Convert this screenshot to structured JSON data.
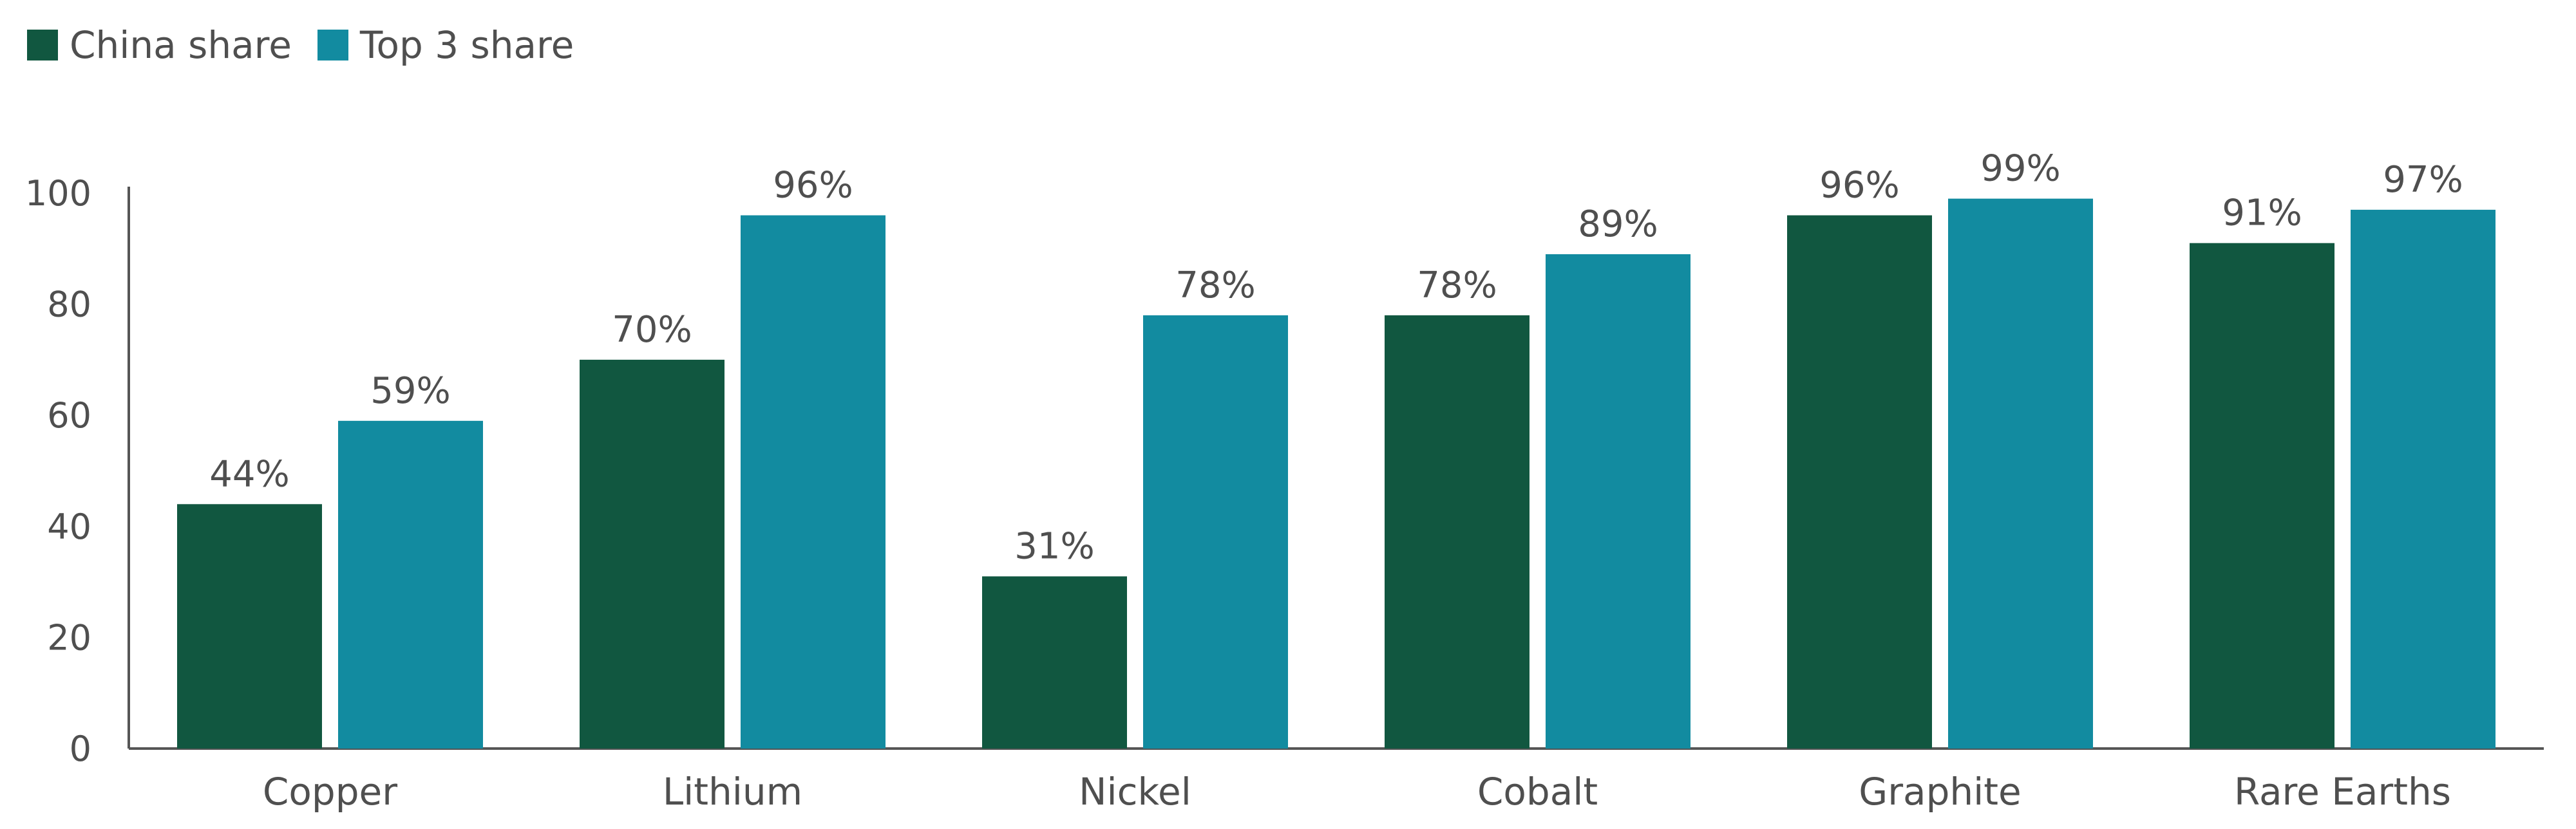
{
  "chart_data": {
    "type": "bar",
    "categories": [
      "Copper",
      "Lithium",
      "Nickel",
      "Cobalt",
      "Graphite",
      "Rare Earths"
    ],
    "series": [
      {
        "name": "China share",
        "color": "#115740",
        "values": [
          44,
          70,
          31,
          78,
          96,
          91
        ],
        "labels": [
          "44%",
          "70%",
          "31%",
          "78%",
          "96%",
          "91%"
        ]
      },
      {
        "name": "Top 3 share",
        "color": "#128ba0",
        "values": [
          59,
          96,
          78,
          89,
          99,
          97
        ],
        "labels": [
          "59%",
          "96%",
          "78%",
          "89%",
          "99%",
          "97%"
        ]
      }
    ],
    "yticks": [
      "0",
      "20",
      "40",
      "60",
      "80",
      "100"
    ],
    "ylim": [
      0,
      100
    ],
    "legend_position": "top-left",
    "grid": false
  }
}
